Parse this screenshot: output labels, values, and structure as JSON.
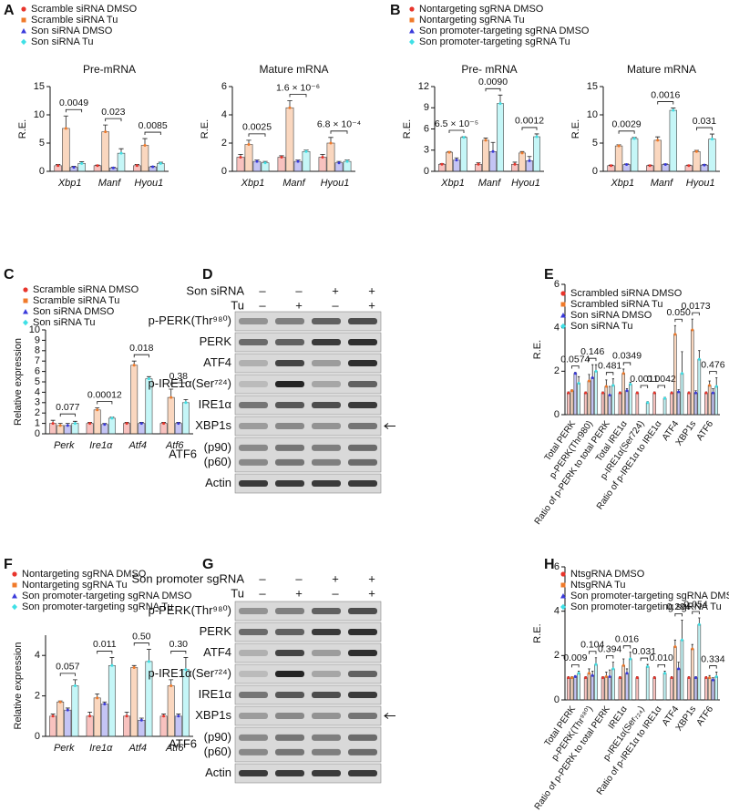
{
  "panel_labels": [
    "A",
    "B",
    "C",
    "D",
    "E",
    "F",
    "G",
    "H"
  ],
  "chart_data": [
    {
      "type": "bar",
      "title": "Pre-mRNA",
      "y_label": "R.E.",
      "categories": [
        "Xbp1",
        "Manf",
        "Hyou1"
      ],
      "series": [
        {
          "name": "Scramble siRNA DMSO",
          "color": "#e8352c",
          "values": [
            1,
            1,
            1
          ],
          "errors": [
            0.2,
            0.1,
            0.2
          ]
        },
        {
          "name": "Scramble siRNA Tu",
          "color": "#f07a2a",
          "values": [
            7.6,
            7.0,
            4.6
          ],
          "errors": [
            2.2,
            1.2,
            1.2
          ]
        },
        {
          "name": "Son siRNA DMSO",
          "color": "#3a3adb",
          "values": [
            0.7,
            0.6,
            0.8
          ],
          "errors": [
            0.2,
            0.1,
            0.1
          ]
        },
        {
          "name": "Son siRNA Tu",
          "color": "#3fe0e6",
          "values": [
            1.4,
            3.2,
            1.4
          ],
          "errors": [
            0.3,
            0.8,
            0.2
          ]
        }
      ],
      "pvalues": [
        "0.0049",
        "0.023",
        "0.0085"
      ],
      "ylim": [
        0,
        15
      ],
      "yticks": [
        0,
        5,
        10,
        15
      ]
    },
    {
      "type": "bar",
      "title": "Mature mRNA",
      "y_label": "R.E.",
      "categories": [
        "Xbp1",
        "Manf",
        "Hyou1"
      ],
      "series": [
        {
          "color": "#e8352c",
          "values": [
            1,
            1,
            1
          ],
          "errors": [
            0.2,
            0.1,
            0.2
          ]
        },
        {
          "color": "#f07a2a",
          "values": [
            1.9,
            4.5,
            2.0
          ],
          "errors": [
            0.3,
            0.5,
            0.4
          ]
        },
        {
          "color": "#3a3adb",
          "values": [
            0.7,
            0.7,
            0.6
          ],
          "errors": [
            0.1,
            0.1,
            0.1
          ]
        },
        {
          "color": "#3fe0e6",
          "values": [
            0.6,
            1.4,
            0.7
          ],
          "errors": [
            0.1,
            0.1,
            0.1
          ]
        }
      ],
      "pvalues": [
        "0.0025",
        "1.6 × 10⁻⁶",
        "6.8 × 10⁻⁴"
      ],
      "ylim": [
        0,
        6
      ],
      "yticks": [
        0,
        2,
        4,
        6
      ]
    },
    {
      "type": "bar",
      "title": "Pre- mRNA",
      "y_label": "R.E.",
      "categories": [
        "Xbp1",
        "Manf",
        "Hyou1"
      ],
      "series": [
        {
          "name": "Nontargeting sgRNA DMSO",
          "color": "#e8352c",
          "values": [
            1,
            1,
            1
          ],
          "errors": [
            0.1,
            0.2,
            0.3
          ]
        },
        {
          "name": "Nontargeting sgRNA Tu",
          "color": "#f07a2a",
          "values": [
            2.7,
            4.4,
            2.6
          ],
          "errors": [
            0.1,
            0.3,
            0.2
          ]
        },
        {
          "name": "Son promoter-targeting sgRNA DMSO",
          "color": "#3a3adb",
          "values": [
            1.6,
            2.8,
            1.5
          ],
          "errors": [
            0.3,
            1.3,
            0.6
          ]
        },
        {
          "name": "Son promoter-targeting sgRNA Tu",
          "color": "#3fe0e6",
          "values": [
            4.8,
            9.6,
            4.9
          ],
          "errors": [
            0.1,
            1.2,
            0.4
          ]
        }
      ],
      "pvalues": [
        "6.5 × 10⁻⁵",
        "0.0090",
        "0.0012"
      ],
      "ylim": [
        0,
        12
      ],
      "yticks": [
        0,
        3,
        6,
        9,
        12
      ]
    },
    {
      "type": "bar",
      "title": "Mature mRNA",
      "y_label": "R.E.",
      "categories": [
        "Xbp1",
        "Manf",
        "Hyou1"
      ],
      "series": [
        {
          "color": "#e8352c",
          "values": [
            1,
            1,
            1
          ],
          "errors": [
            0.1,
            0.1,
            0.1
          ]
        },
        {
          "color": "#f07a2a",
          "values": [
            4.5,
            5.5,
            3.5
          ],
          "errors": [
            0.2,
            0.6,
            0.2
          ]
        },
        {
          "color": "#3a3adb",
          "values": [
            1.2,
            1.2,
            1.1
          ],
          "errors": [
            0.1,
            0.1,
            0.1
          ]
        },
        {
          "color": "#3fe0e6",
          "values": [
            5.8,
            10.8,
            5.7
          ],
          "errors": [
            0.2,
            0.4,
            0.9
          ]
        }
      ],
      "pvalues": [
        "0.0029",
        "0.0016",
        "0.031"
      ],
      "ylim": [
        0,
        15
      ],
      "yticks": [
        0,
        5,
        10,
        15
      ]
    },
    {
      "type": "bar",
      "y_label": "Relative expression",
      "categories": [
        "Perk",
        "Ire1α",
        "Atf4",
        "Atf6"
      ],
      "series": [
        {
          "name": "Scramble siRNA DMSO",
          "color": "#e8352c",
          "values": [
            1,
            1,
            1,
            1
          ],
          "errors": [
            0.3,
            0.1,
            0.1,
            0.1
          ]
        },
        {
          "name": "Scramble siRNA Tu",
          "color": "#f07a2a",
          "values": [
            0.8,
            2.3,
            6.6,
            3.5
          ],
          "errors": [
            0.2,
            0.2,
            0.4,
            0.8
          ]
        },
        {
          "name": "Son siRNA DMSO",
          "color": "#3a3adb",
          "values": [
            0.8,
            0.9,
            1.0,
            1.0
          ],
          "errors": [
            0.2,
            0.1,
            0.1,
            0.1
          ]
        },
        {
          "name": "Son siRNA Tu",
          "color": "#3fe0e6",
          "values": [
            1.0,
            1.5,
            5.3,
            3.0
          ],
          "errors": [
            0.2,
            0.1,
            0.2,
            0.3
          ]
        }
      ],
      "pvalues": [
        "0.077",
        "0.00012",
        "0.018",
        "0.38"
      ],
      "ylim": [
        0,
        10
      ],
      "yticks": [
        0,
        1,
        2,
        3,
        4,
        5,
        6,
        7,
        8,
        9,
        10
      ]
    },
    {
      "type": "bar",
      "y_label": "R.E.",
      "categories": [
        "Total PERK",
        "p-PERK(Thr980)",
        "Ratio of p-PERK to total PERK",
        "Total IRE1α",
        "p-IRE1α(Ser724)",
        "Ratio of p-IRE1α to IRE1α",
        "ATF4",
        "XBP1s",
        "ATF6"
      ],
      "series": [
        {
          "name": "Scrambled siRNA DMSO",
          "color": "#e8352c",
          "values": [
            1,
            1,
            1,
            1,
            1,
            1,
            1,
            1,
            1
          ],
          "errors": [
            0.05,
            0.05,
            0.05,
            0.05,
            0.05,
            0.05,
            0.05,
            0.05,
            0.05
          ]
        },
        {
          "name": "Scrambled siRNA Tu",
          "color": "#f07a2a",
          "values": [
            1.1,
            1.55,
            1.3,
            1.9,
            null,
            null,
            3.7,
            3.9,
            1.35
          ],
          "errors": [
            0.05,
            0.3,
            0.3,
            0.2,
            null,
            null,
            0.4,
            0.5,
            0.2
          ]
        },
        {
          "name": "Son siRNA DMSO",
          "color": "#3a3adb",
          "values": [
            1.9,
            1.7,
            0.9,
            1.1,
            null,
            null,
            1.05,
            1.0,
            1.0
          ],
          "errors": [
            0.05,
            0.6,
            0.4,
            0.1,
            null,
            null,
            0.1,
            0.1,
            0.2
          ]
        },
        {
          "name": "Son siRNA Tu",
          "color": "#3fe0e6",
          "values": [
            1.45,
            2.0,
            1.35,
            1.4,
            0.55,
            0.75,
            1.9,
            2.55,
            1.3
          ],
          "errors": [
            0.3,
            0.3,
            0.3,
            0.1,
            0.05,
            0.05,
            1.0,
            0.4,
            0.4
          ]
        }
      ],
      "pvalues": [
        "0.0574",
        "0.146",
        "0.481",
        "0.0349",
        "0.0011",
        "0.0042",
        "0.050",
        "0.0173",
        "0.476"
      ],
      "ylim": [
        0,
        6
      ],
      "yticks": [
        0,
        2,
        4,
        6
      ]
    },
    {
      "type": "bar",
      "y_label": "Relative expression",
      "categories": [
        "Perk",
        "Ire1α",
        "Atf4",
        "Atf6"
      ],
      "series": [
        {
          "name": "Nontargeting sgRNA DMSO",
          "color": "#e8352c",
          "values": [
            1,
            1,
            1,
            1
          ],
          "errors": [
            0.1,
            0.2,
            0.2,
            0.1
          ]
        },
        {
          "name": "Nontargeting sgRNA Tu",
          "color": "#f07a2a",
          "values": [
            1.7,
            1.9,
            3.4,
            2.5
          ],
          "errors": [
            0.05,
            0.2,
            0.1,
            0.3
          ]
        },
        {
          "name": "Son promoter-targeting sgRNA DMSO",
          "color": "#3a3adb",
          "values": [
            1.3,
            1.6,
            0.8,
            1.0
          ],
          "errors": [
            0.1,
            0.1,
            0.1,
            0.1
          ]
        },
        {
          "name": "Son promoter-targeting sgRNA Tu",
          "color": "#3fe0e6",
          "values": [
            2.5,
            3.5,
            3.7,
            3.3
          ],
          "errors": [
            0.3,
            0.4,
            0.6,
            0.6
          ]
        }
      ],
      "pvalues": [
        "0.057",
        "0.011",
        "0.50",
        "0.30"
      ],
      "ylim": [
        0,
        5
      ],
      "yticks": [
        0,
        2,
        4
      ]
    },
    {
      "type": "bar",
      "y_label": "R.E.",
      "categories": [
        "Total PERK",
        "p-PERK(Thr⁹⁸⁰)",
        "Ratio of p-PERK to total PERK",
        "IRE1α",
        "p-IRE1α(Ser₇₂₄)",
        "Ratio of p-IRE1α to IRE1α",
        "ATF4",
        "XBP1s",
        "ATF6"
      ],
      "series": [
        {
          "name": "NtsgRNA DMSO",
          "color": "#e8352c",
          "values": [
            1,
            1,
            1,
            1,
            1,
            1,
            1,
            1,
            1
          ],
          "errors": [
            0.05,
            0.05,
            0.05,
            0.05,
            0.05,
            0.05,
            0.05,
            0.05,
            0.05
          ]
        },
        {
          "name": "NtsgRNA Tu",
          "color": "#f07a2a",
          "values": [
            1.0,
            1.2,
            1.05,
            1.55,
            null,
            null,
            2.4,
            2.3,
            1.0
          ],
          "errors": [
            0.05,
            0.2,
            0.2,
            0.3,
            null,
            null,
            0.3,
            0.2,
            0.1
          ]
        },
        {
          "name": "Son promoter-targeting sgRNA DMSO",
          "color": "#3a3adb",
          "values": [
            1.05,
            1.1,
            1.05,
            1.2,
            null,
            null,
            1.4,
            1.0,
            0.9
          ],
          "errors": [
            0.05,
            0.2,
            0.3,
            0.2,
            null,
            null,
            0.3,
            0.05,
            0.1
          ]
        },
        {
          "name": "Son promoter-targeting sgRNA Tu",
          "color": "#3fe0e6",
          "values": [
            1.2,
            1.6,
            1.4,
            1.85,
            1.5,
            1.2,
            2.7,
            3.4,
            1.05
          ],
          "errors": [
            0.1,
            0.3,
            0.3,
            0.3,
            0.1,
            0.1,
            0.9,
            0.3,
            0.2
          ]
        }
      ],
      "pvalues": [
        "0.009",
        "0.104",
        "0.394",
        "0.016",
        "0.031",
        "0.010",
        "0.294",
        "0.054",
        "0.334"
      ],
      "ylim": [
        0,
        6
      ],
      "yticks": [
        0,
        2,
        4,
        6
      ]
    }
  ],
  "blots": [
    {
      "conditions": [
        {
          "label": "Son siRNA",
          "signs": [
            "–",
            "–",
            "+",
            "+"
          ]
        },
        {
          "label": "Tu",
          "signs": [
            "–",
            "+",
            "–",
            "+"
          ]
        }
      ],
      "bands": [
        {
          "label": "p-PERK(Thr⁹⁸⁰)"
        },
        {
          "label": "PERK"
        },
        {
          "label": "ATF4"
        },
        {
          "label": "p-IRE1α(Ser⁷²⁴)"
        },
        {
          "label": "IRE1α"
        },
        {
          "label": "XBP1s"
        },
        {
          "label": "ATF6",
          "sublabels": [
            "(p90)",
            "(p60)"
          ]
        },
        {
          "label": "Actin"
        }
      ]
    },
    {
      "conditions": [
        {
          "label": "Son promoter sgRNA",
          "signs": [
            "–",
            "–",
            "+",
            "+"
          ]
        },
        {
          "label": "Tu",
          "signs": [
            "–",
            "+",
            "–",
            "+"
          ]
        }
      ],
      "bands": [
        {
          "label": "p-PERK(Thr⁹⁸⁰)"
        },
        {
          "label": "PERK"
        },
        {
          "label": "ATF4"
        },
        {
          "label": "p-IRE1α(Ser⁷²⁴)"
        },
        {
          "label": "IRE1α"
        },
        {
          "label": "XBP1s"
        },
        {
          "label": "ATF6",
          "sublabels": [
            "(p90)",
            "(p60)"
          ]
        },
        {
          "label": "Actin"
        }
      ]
    }
  ]
}
